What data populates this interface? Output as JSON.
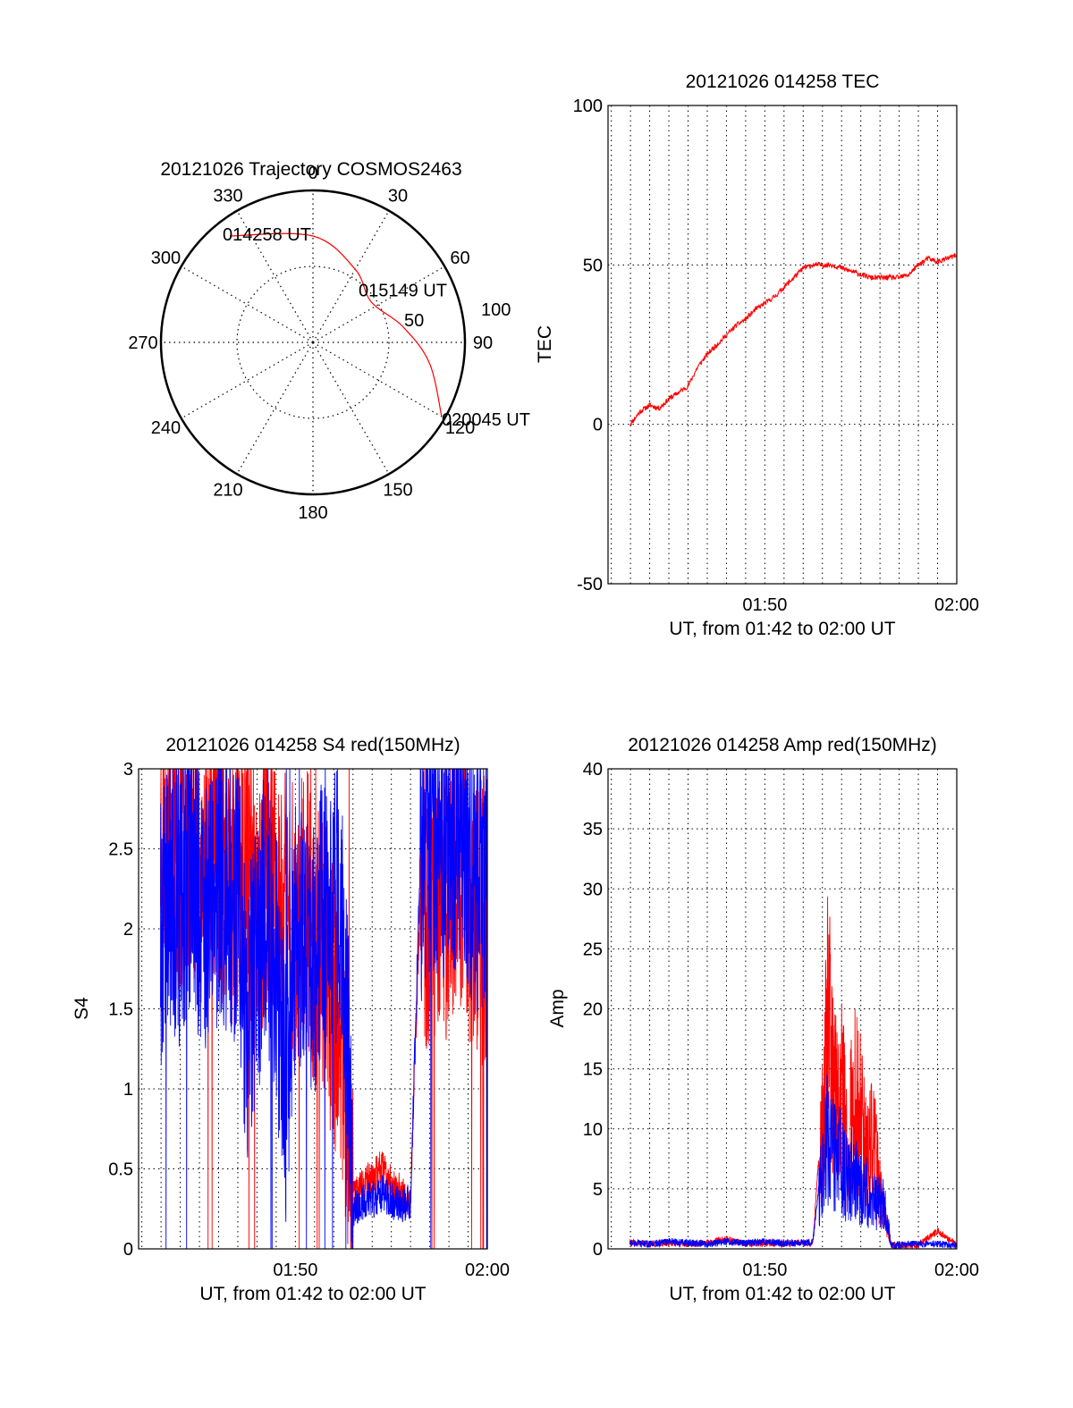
{
  "chart_data": [
    {
      "type": "polar",
      "title": "20121026 Trajectory COSMOS2463",
      "azimuth_labels": [
        "0",
        "30",
        "60",
        "90",
        "120",
        "150",
        "180",
        "210",
        "240",
        "270",
        "300",
        "330"
      ],
      "elevation_ring_labels": [
        "50",
        "100"
      ],
      "grid": true,
      "trajectory": {
        "color": "#ff0000",
        "points": [
          {
            "azimuth": 322,
            "elevation": 10,
            "time_label": "014258 UT"
          },
          {
            "azimuth": 0,
            "elevation": 27
          },
          {
            "azimuth": 30,
            "elevation": 40
          },
          {
            "azimuth": 55,
            "elevation": 48,
            "time_label": "015149 UT"
          },
          {
            "azimuth": 80,
            "elevation": 36
          },
          {
            "azimuth": 100,
            "elevation": 20
          },
          {
            "azimuth": 120,
            "elevation": 2,
            "time_label": "020045 UT"
          }
        ]
      }
    },
    {
      "type": "line",
      "title": "20121026 014258 TEC",
      "xlabel": "UT, from 01:42 to 02:00 UT",
      "ylabel": "TEC",
      "xlim": [
        101.83,
        120
      ],
      "ylim": [
        -50,
        100
      ],
      "x_unit": "minutes after 00:00 UT",
      "xticks": [
        {
          "value": 110,
          "label": "01:50"
        },
        {
          "value": 120,
          "label": "02:00"
        }
      ],
      "yticks": [
        {
          "value": -50,
          "label": "-50"
        },
        {
          "value": 0,
          "label": "0"
        },
        {
          "value": 50,
          "label": "50"
        },
        {
          "value": 100,
          "label": "100"
        }
      ],
      "grid": true,
      "series": [
        {
          "color": "#ff0000",
          "x": [
            102.97,
            103.5,
            104,
            104.5,
            105,
            105.5,
            106,
            106.5,
            107,
            107.5,
            108,
            108.5,
            109,
            109.5,
            110,
            110.5,
            111,
            111.5,
            112,
            112.5,
            113,
            113.5,
            114,
            114.5,
            115,
            115.5,
            116,
            116.5,
            117,
            117.5,
            118,
            118.5,
            119,
            119.5,
            120
          ],
          "y": [
            0,
            4,
            6,
            5,
            8,
            10,
            12,
            18,
            22,
            25,
            28,
            31,
            33,
            36,
            38,
            40,
            43,
            46,
            49,
            50,
            50,
            50,
            49,
            48,
            47,
            46,
            46,
            46,
            46,
            47,
            50,
            52,
            51,
            52,
            53
          ]
        }
      ]
    },
    {
      "type": "line",
      "title": "20121026 014258 S4 red(150MHz)",
      "xlabel": "UT, from 01:42 to 02:00 UT",
      "ylabel": "S4",
      "xlim": [
        101.83,
        120
      ],
      "ylim": [
        0,
        3
      ],
      "x_unit": "minutes after 00:00 UT",
      "xticks": [
        {
          "value": 110,
          "label": "01:50"
        },
        {
          "value": 120,
          "label": "02:00"
        }
      ],
      "yticks": [
        {
          "value": 0,
          "label": "0"
        },
        {
          "value": 0.5,
          "label": "0.5"
        },
        {
          "value": 1,
          "label": "1"
        },
        {
          "value": 1.5,
          "label": "1.5"
        },
        {
          "value": 2,
          "label": "2"
        },
        {
          "value": 2.5,
          "label": "2.5"
        },
        {
          "value": 3,
          "label": "3"
        }
      ],
      "grid": true,
      "series": [
        {
          "color": "#ff0000",
          "x": [
            102.97,
            103.5,
            104,
            104.5,
            105,
            105.5,
            106,
            106.5,
            107,
            107.5,
            108,
            108.5,
            109,
            109.5,
            110,
            110.5,
            111,
            111.5,
            112,
            112.5,
            113,
            113.5,
            114,
            114.5,
            115,
            115.5,
            116,
            116.5,
            117,
            117.5,
            118,
            118.5,
            119,
            119.5,
            120
          ],
          "y": [
            2.6,
            2.8,
            2.4,
            2.7,
            2.3,
            2.6,
            2.5,
            2.2,
            2.4,
            2.3,
            2.0,
            2.4,
            2.1,
            2.3,
            2.0,
            2.2,
            1.9,
            1.8,
            1.5,
            1.3,
            0.3,
            0.4,
            0.45,
            0.5,
            0.4,
            0.35,
            0.3,
            2.2,
            2.0,
            2.3,
            2.1,
            2.4,
            2.2,
            2.0,
            2.1
          ]
        },
        {
          "color": "#0000ff",
          "x": [
            102.97,
            103.5,
            104,
            104.5,
            105,
            105.5,
            106,
            106.5,
            107,
            107.5,
            108,
            108.5,
            109,
            109.5,
            110,
            110.5,
            111,
            111.5,
            112,
            112.5,
            113,
            113.5,
            114,
            114.5,
            115,
            115.5,
            116,
            116.5,
            117,
            117.5,
            118,
            118.5,
            119,
            119.5,
            120
          ],
          "y": [
            1.9,
            2.3,
            2.1,
            2.4,
            2.2,
            2.0,
            2.3,
            2.1,
            2.2,
            1.4,
            1.8,
            2.2,
            1.7,
            1.0,
            2.0,
            1.9,
            1.8,
            2.1,
            2.2,
            2.0,
            0.25,
            0.3,
            0.3,
            0.35,
            0.3,
            0.28,
            0.3,
            2.4,
            2.6,
            2.5,
            2.7,
            2.6,
            2.5,
            2.3,
            2.4
          ]
        }
      ]
    },
    {
      "type": "line",
      "title": "20121026 014258 Amp red(150MHz)",
      "xlabel": "UT, from 01:42 to 02:00 UT",
      "ylabel": "Amp",
      "xlim": [
        101.83,
        120
      ],
      "ylim": [
        0,
        40
      ],
      "x_unit": "minutes after 00:00 UT",
      "xticks": [
        {
          "value": 110,
          "label": "01:50"
        },
        {
          "value": 120,
          "label": "02:00"
        }
      ],
      "yticks": [
        {
          "value": 0,
          "label": "0"
        },
        {
          "value": 5,
          "label": "5"
        },
        {
          "value": 10,
          "label": "10"
        },
        {
          "value": 15,
          "label": "15"
        },
        {
          "value": 20,
          "label": "20"
        },
        {
          "value": 25,
          "label": "25"
        },
        {
          "value": 30,
          "label": "30"
        },
        {
          "value": 35,
          "label": "35"
        },
        {
          "value": 40,
          "label": "40"
        }
      ],
      "grid": true,
      "series": [
        {
          "color": "#ff0000",
          "x": [
            102.97,
            104,
            105,
            106,
            107,
            108,
            109,
            110,
            111,
            112,
            112.5,
            113,
            113.3,
            113.6,
            114,
            114.3,
            114.6,
            115,
            115.3,
            115.6,
            116,
            116.3,
            116.6,
            117,
            118,
            119,
            120
          ],
          "y": [
            0.5,
            0.4,
            0.5,
            0.4,
            0.5,
            0.8,
            0.4,
            0.5,
            0.4,
            0.5,
            0.5,
            12,
            24,
            15,
            18,
            10,
            16,
            14,
            9,
            12,
            6,
            3,
            0.3,
            0.3,
            0.3,
            1.5,
            0.3
          ]
        },
        {
          "color": "#0000ff",
          "x": [
            102.97,
            104,
            105,
            106,
            107,
            108,
            109,
            110,
            111,
            112,
            112.5,
            113,
            113.3,
            113.6,
            114,
            114.3,
            114.6,
            115,
            115.3,
            115.6,
            116,
            116.3,
            116.6,
            117,
            118,
            119,
            120
          ],
          "y": [
            0.5,
            0.4,
            0.6,
            0.5,
            0.4,
            0.6,
            0.5,
            0.6,
            0.5,
            0.5,
            0.6,
            8,
            12,
            10,
            9,
            7,
            8,
            6,
            6,
            5,
            5,
            4,
            0.3,
            0.3,
            0.4,
            0.4,
            0.3
          ]
        }
      ]
    }
  ]
}
